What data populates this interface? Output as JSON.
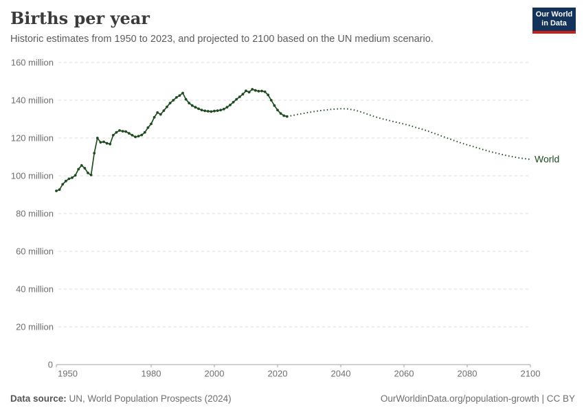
{
  "header": {
    "title": "Births per year",
    "subtitle": "Historic estimates from 1950 to 2023, and projected to 2100 based on the UN medium scenario.",
    "logo": {
      "line1": "Our World",
      "line2": "in Data",
      "bg_color": "#14335a",
      "bar_color": "#c7201a"
    }
  },
  "chart_data": {
    "type": "line",
    "title": "Births per year",
    "xlabel": "",
    "ylabel": "",
    "unit": "million births",
    "xlim": [
      1950,
      2100
    ],
    "ylim_millions": [
      0,
      160
    ],
    "grid": "horizontal dashed",
    "legend_position": "end-of-line label",
    "line_color": "#1e4c20",
    "x_ticks": [
      1950,
      1980,
      2000,
      2020,
      2040,
      2060,
      2080,
      2100
    ],
    "y_ticks": [
      {
        "value": 0,
        "label": "0"
      },
      {
        "value": 20,
        "label": "20 million"
      },
      {
        "value": 40,
        "label": "40 million"
      },
      {
        "value": 60,
        "label": "60 million"
      },
      {
        "value": 80,
        "label": "80 million"
      },
      {
        "value": 100,
        "label": "100 million"
      },
      {
        "value": 120,
        "label": "120 million"
      },
      {
        "value": 140,
        "label": "140 million"
      },
      {
        "value": 160,
        "label": "160 million"
      }
    ],
    "end_label": "World",
    "series": [
      {
        "name": "World — historic estimates",
        "style": "solid_with_markers",
        "start_year": 1950,
        "values_millions": [
          92.0,
          92.7,
          95.5,
          97.2,
          98.4,
          99.0,
          100.2,
          103.5,
          105.5,
          104.0,
          101.5,
          100.4,
          112.0,
          120.0,
          117.7,
          118.0,
          117.2,
          116.8,
          121.5,
          123.0,
          124.0,
          123.6,
          123.4,
          122.5,
          121.5,
          120.6,
          121.0,
          121.6,
          123.0,
          125.5,
          127.5,
          131.0,
          133.5,
          132.5,
          134.5,
          136.5,
          138.5,
          140.0,
          141.5,
          142.5,
          143.8,
          140.5,
          138.5,
          137.2,
          136.3,
          135.5,
          134.8,
          134.4,
          134.2,
          134.0,
          134.3,
          134.5,
          134.8,
          135.3,
          136.3,
          137.5,
          139.0,
          140.5,
          141.8,
          143.2,
          145.0,
          144.3,
          145.8,
          145.2,
          144.8,
          144.9,
          144.5,
          142.8,
          140.0,
          137.2,
          134.8,
          133.0,
          131.8,
          131.4
        ]
      },
      {
        "name": "World — UN medium scenario projection",
        "style": "dotted",
        "start_year": 2023,
        "values_millions": [
          131.4,
          131.7,
          132.0,
          132.4,
          132.7,
          133.0,
          133.3,
          133.6,
          133.9,
          134.2,
          134.4,
          134.6,
          134.8,
          135.0,
          135.2,
          135.3,
          135.4,
          135.5,
          135.5,
          135.4,
          135.2,
          134.9,
          134.5,
          134.0,
          133.5,
          132.9,
          132.3,
          131.7,
          131.2,
          130.7,
          130.2,
          129.8,
          129.4,
          129.0,
          128.6,
          128.2,
          127.8,
          127.4,
          127.0,
          126.5,
          126.0,
          125.5,
          125.0,
          124.5,
          124.0,
          123.4,
          122.8,
          122.2,
          121.6,
          121.0,
          120.4,
          119.8,
          119.2,
          118.6,
          118.0,
          117.4,
          116.9,
          116.4,
          115.9,
          115.4,
          114.9,
          114.4,
          113.9,
          113.4,
          112.9,
          112.5,
          112.1,
          111.7,
          111.3,
          110.9,
          110.5,
          110.2,
          109.9,
          109.6,
          109.3,
          109.1,
          108.9,
          108.7
        ]
      }
    ]
  },
  "footer": {
    "source_label": "Data source:",
    "source_text": " UN, World Population Prospects (2024)",
    "credit": "OurWorldinData.org/population-growth | CC BY"
  }
}
